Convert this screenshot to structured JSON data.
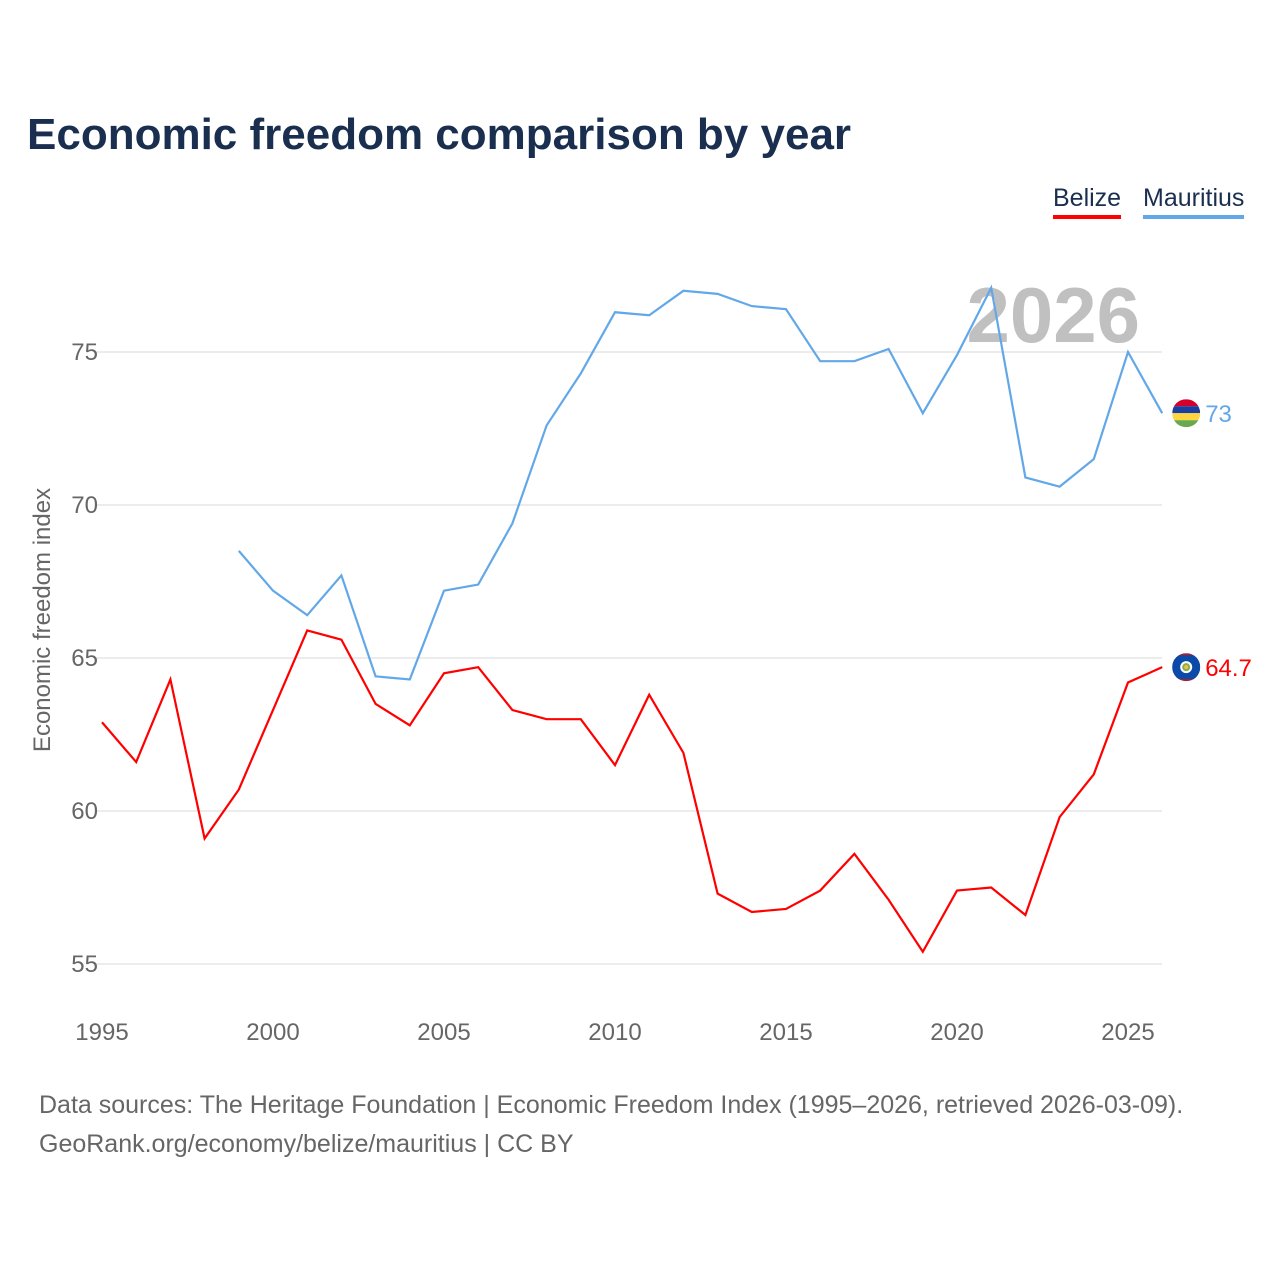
{
  "title": "Economic freedom comparison by year",
  "legend": [
    {
      "label": "Belize",
      "color": "#ff0000"
    },
    {
      "label": "Mauritius",
      "color": "#62a8e8"
    }
  ],
  "footer": {
    "line1": "Data sources: The Heritage Foundation | Economic Freedom Index (1995–2026, retrieved 2026-03-09).",
    "line2": "GeoRank.org/economy/belize/mauritius | CC BY"
  },
  "chart_data": {
    "type": "line",
    "title": "Economic freedom comparison by year",
    "ylabel": "Economic freedom index",
    "xlabel": "",
    "year_watermark": "2026",
    "xlim": [
      1995,
      2026
    ],
    "ylim": [
      54,
      78.6
    ],
    "xticks": [
      1995,
      2000,
      2005,
      2010,
      2015,
      2020,
      2025
    ],
    "yticks": [
      55,
      60,
      65,
      70,
      75
    ],
    "grid": true,
    "legend_position": "top-right",
    "series": [
      {
        "name": "Belize",
        "color": "#ff0000",
        "end_label": "64.7",
        "flag": "belize-flag",
        "x": [
          1995,
          1996,
          1997,
          1998,
          1999,
          2000,
          2001,
          2002,
          2003,
          2004,
          2005,
          2006,
          2007,
          2008,
          2009,
          2010,
          2011,
          2012,
          2013,
          2014,
          2015,
          2016,
          2017,
          2018,
          2019,
          2020,
          2021,
          2022,
          2023,
          2024,
          2025,
          2026
        ],
        "y": [
          62.9,
          61.6,
          64.3,
          59.1,
          60.7,
          63.3,
          65.9,
          65.6,
          63.5,
          62.8,
          64.5,
          64.7,
          63.3,
          63.0,
          63.0,
          61.5,
          63.8,
          61.9,
          57.3,
          56.7,
          56.8,
          57.4,
          58.6,
          57.1,
          55.4,
          57.4,
          57.5,
          56.6,
          59.8,
          61.2,
          64.2,
          64.7
        ]
      },
      {
        "name": "Mauritius",
        "color": "#62a8e8",
        "end_label": "73",
        "flag": "mauritius-flag",
        "x": [
          1999,
          2000,
          2001,
          2002,
          2003,
          2004,
          2005,
          2006,
          2007,
          2008,
          2009,
          2010,
          2011,
          2012,
          2013,
          2014,
          2015,
          2016,
          2017,
          2018,
          2019,
          2020,
          2021,
          2022,
          2023,
          2024,
          2025,
          2026
        ],
        "y": [
          68.5,
          67.2,
          66.4,
          67.7,
          64.4,
          64.3,
          67.2,
          67.4,
          69.4,
          72.6,
          74.3,
          76.3,
          76.2,
          77.0,
          76.9,
          76.5,
          76.4,
          74.7,
          74.7,
          75.1,
          73.0,
          74.9,
          77.1,
          70.9,
          70.6,
          71.5,
          75.0,
          73.0
        ]
      }
    ]
  }
}
